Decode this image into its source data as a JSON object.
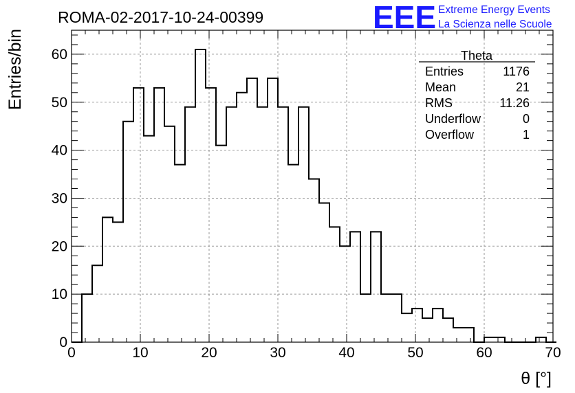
{
  "chart_data": {
    "type": "bar",
    "title": "ROMA-02-2017-10-24-00399",
    "xlabel": "θ [°]",
    "ylabel": "Entries/bin",
    "xlim": [
      0,
      70
    ],
    "ylim": [
      0,
      65
    ],
    "x_ticks": [
      0,
      10,
      20,
      30,
      40,
      50,
      60,
      70
    ],
    "y_ticks": [
      0,
      10,
      20,
      30,
      40,
      50,
      60
    ],
    "grid": true,
    "bin_width": 1.5,
    "bin_start": 0,
    "values": [
      0,
      10,
      16,
      26,
      25,
      46,
      53,
      43,
      53,
      45,
      37,
      49,
      61,
      53,
      41,
      49,
      52,
      55,
      49,
      55,
      49,
      37,
      49,
      34,
      29,
      24,
      20,
      23,
      10,
      23,
      10,
      10,
      6,
      7,
      5,
      7,
      5,
      3,
      3,
      0,
      1,
      1,
      0,
      0,
      0,
      1,
      0
    ],
    "stats": {
      "name": "Theta",
      "rows": [
        {
          "label": "Entries",
          "value": "1176"
        },
        {
          "label": "Mean",
          "value": "21"
        },
        {
          "label": "RMS",
          "value": "11.26"
        },
        {
          "label": "Underflow",
          "value": "0"
        },
        {
          "label": "Overflow",
          "value": "1"
        }
      ]
    }
  },
  "logo": {
    "mark": "EEE",
    "line1": "Extreme Energy Events",
    "line2": "La Scienza nelle Scuole",
    "color": "#1a1aff"
  },
  "colors": {
    "line": "#000000",
    "grid": "#9a9a9a",
    "background": "#ffffff"
  }
}
